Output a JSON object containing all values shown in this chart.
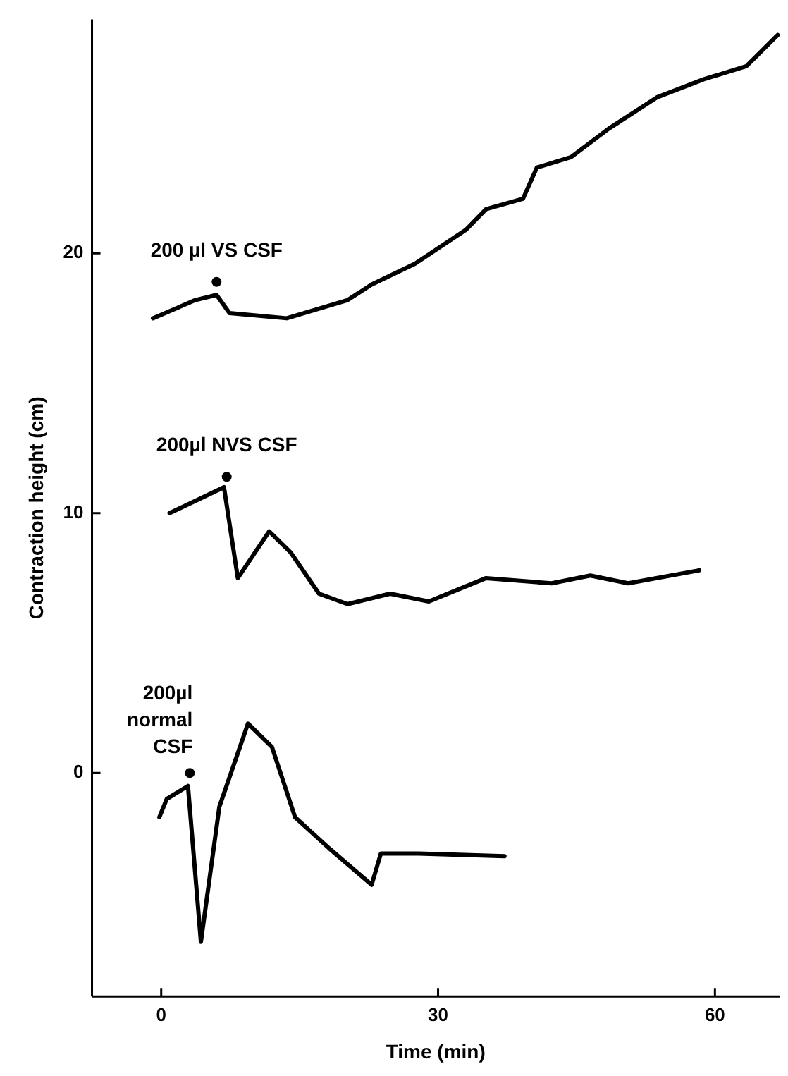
{
  "chart_data": {
    "type": "line",
    "xlabel": "Time (min)",
    "ylabel": "Contraction height (cm)",
    "xlim": [
      -7.5,
      67
    ],
    "xticks": [
      0,
      30,
      60
    ],
    "ylim": [
      -8.6,
      29
    ],
    "yticks": [
      0,
      10,
      20
    ],
    "grid": false,
    "legend": false,
    "marker": "none",
    "line_style": "solid",
    "series": [
      {
        "color": "#000000",
        "x": [
          -0.9,
          3.7,
          6.0,
          7.4,
          13.6,
          20.2,
          22.8,
          27.5,
          33.0,
          35.2,
          39.2,
          40.7,
          44.4,
          48.5,
          53.7,
          58.8,
          63.4,
          66.8
        ],
        "values": [
          17.5,
          18.2,
          18.4,
          17.7,
          17.5,
          18.2,
          18.8,
          19.6,
          20.9,
          21.7,
          22.1,
          23.3,
          23.7,
          24.8,
          26.0,
          26.7,
          27.2,
          28.4
        ]
      },
      {
        "color": "#000000",
        "x": [
          0.9,
          6.8,
          8.3,
          11.7,
          14.0,
          17.1,
          20.2,
          24.8,
          29.0,
          35.2,
          42.3,
          46.5,
          50.6,
          58.3
        ],
        "values": [
          10.0,
          11.0,
          7.5,
          9.3,
          8.5,
          6.9,
          6.5,
          6.9,
          6.6,
          7.5,
          7.3,
          7.6,
          7.3,
          7.8
        ]
      },
      {
        "color": "#000000",
        "x": [
          -0.2,
          0.6,
          2.9,
          4.3,
          6.3,
          9.4,
          12.0,
          14.5,
          18.2,
          22.8,
          23.8,
          27.9,
          37.2
        ],
        "values": [
          -1.7,
          -1.0,
          -0.5,
          -6.5,
          -1.3,
          1.9,
          1.0,
          -1.7,
          -2.9,
          -4.3,
          -3.1,
          -3.1,
          -3.2
        ]
      },
      {
        "type": "scatter",
        "marker": "circle",
        "color": "#000000",
        "x": [
          6.0,
          7.1,
          3.1
        ],
        "values": [
          18.9,
          11.4,
          0.0
        ]
      }
    ],
    "annotations": [
      "200 µl VS CSF",
      "200µl NVS CSF",
      "200µl\nnormal\nCSF"
    ]
  }
}
